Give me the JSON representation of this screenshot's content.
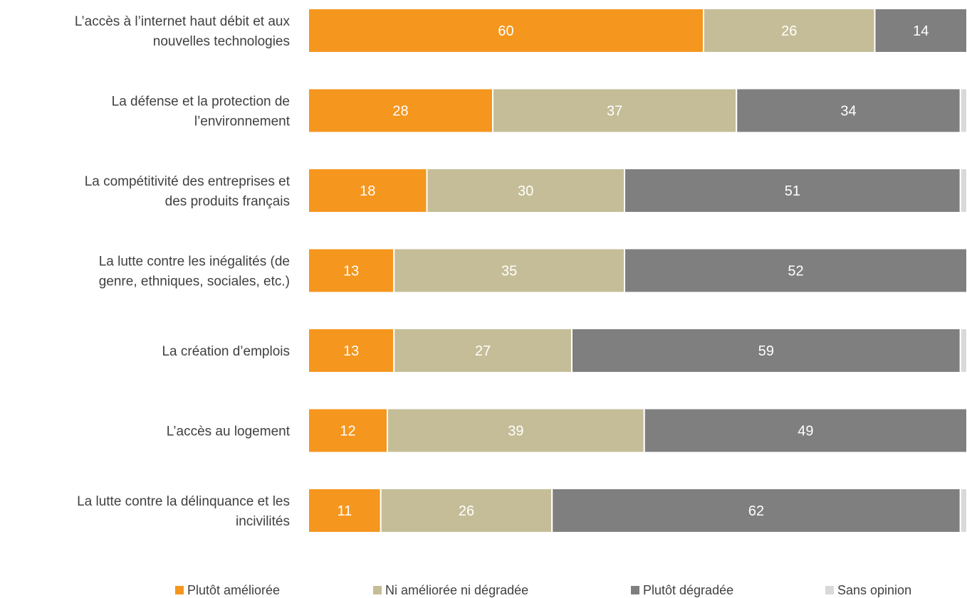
{
  "chart_data": {
    "type": "bar",
    "orientation": "horizontal",
    "stacked": true,
    "categories": [
      [
        "L’accès à l’internet haut débit et aux",
        "nouvelles technologies"
      ],
      [
        "La défense et la protection de",
        "l’environnement"
      ],
      [
        "La compétitivité des entreprises et",
        "des produits français"
      ],
      [
        "La lutte contre les inégalités (de",
        "genre, ethniques, sociales, etc.)"
      ],
      [
        "La création d’emplois"
      ],
      [
        "L’accès au logement"
      ],
      [
        "La lutte contre la délinquance et les",
        "incivilités"
      ]
    ],
    "series": [
      {
        "name": "Plutôt améliorée",
        "color": "#F5961E",
        "values": [
          60,
          28,
          18,
          13,
          13,
          12,
          11
        ]
      },
      {
        "name": "Ni améliorée ni dégradée",
        "color": "#C4BD97",
        "values": [
          26,
          37,
          30,
          35,
          27,
          39,
          26
        ]
      },
      {
        "name": "Plutôt dégradée",
        "color": "#7F7F7F",
        "values": [
          14,
          34,
          51,
          52,
          59,
          49,
          62
        ]
      },
      {
        "name": "Sans opinion",
        "color": "#D9D9D9",
        "values": [
          0,
          1,
          1,
          0,
          1,
          0,
          1
        ]
      }
    ],
    "xlim": [
      0,
      100
    ],
    "legend": "bottom",
    "grid": false
  }
}
